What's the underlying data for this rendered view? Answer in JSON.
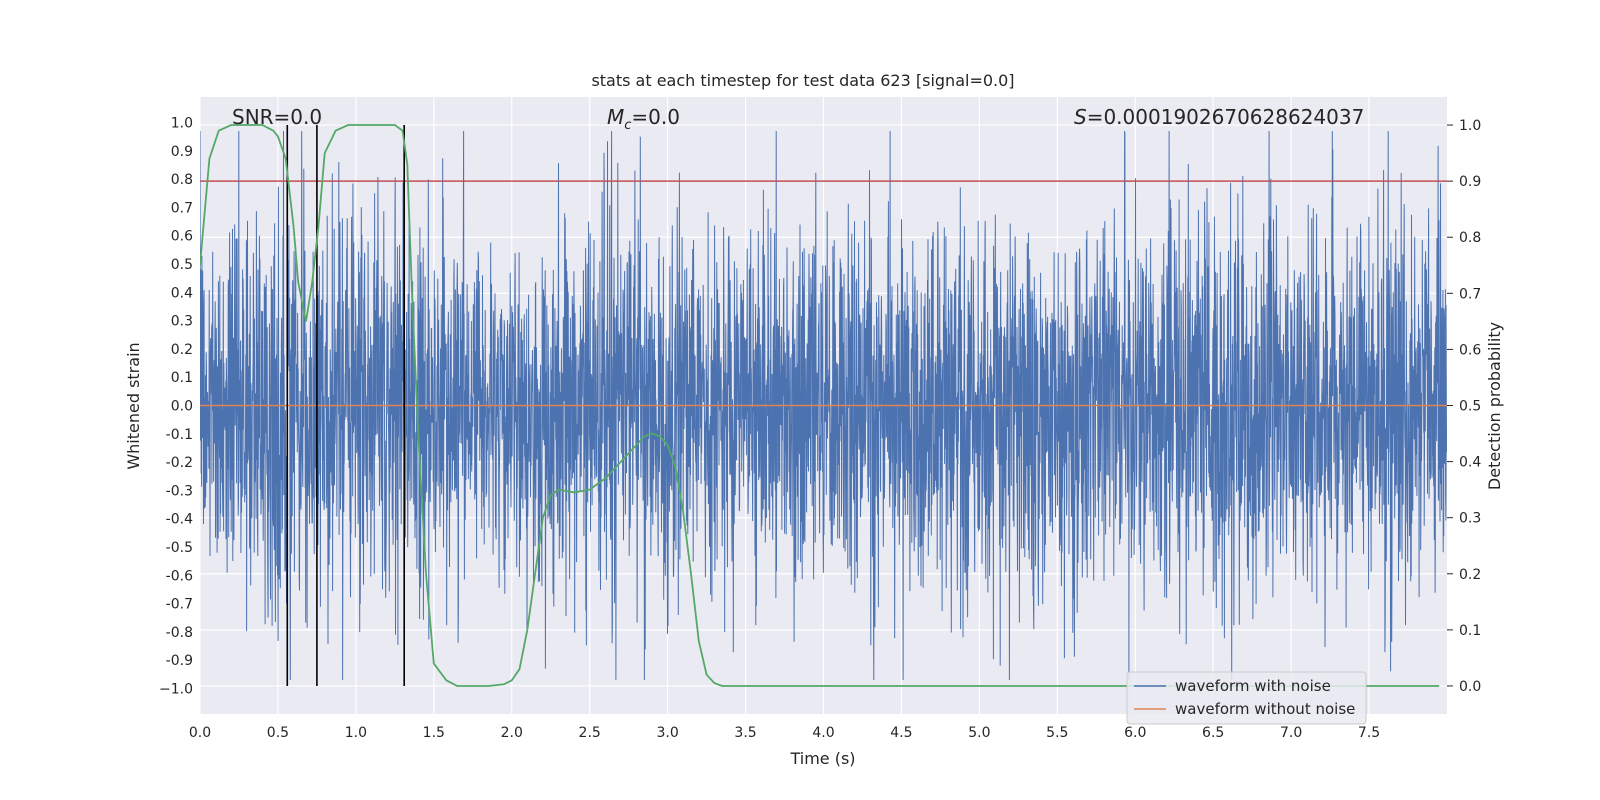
{
  "chart_data": {
    "type": "line",
    "title": "stats at each timestep for test data 623 [signal=0.0]",
    "xlabel": "Time (s)",
    "ylabel": "Whitened strain",
    "y2label": "Detection probability",
    "xlim": [
      0.0,
      8.0
    ],
    "ylim": [
      -1.09,
      1.09
    ],
    "y2lim": [
      -0.05,
      1.05
    ],
    "xticks": [
      "0.0",
      "0.5",
      "1.0",
      "1.5",
      "2.0",
      "2.5",
      "3.0",
      "3.5",
      "4.0",
      "4.5",
      "5.0",
      "5.5",
      "6.0",
      "6.5",
      "7.0",
      "7.5"
    ],
    "xtick_values": [
      0.0,
      0.5,
      1.0,
      1.5,
      2.0,
      2.5,
      3.0,
      3.5,
      4.0,
      4.5,
      5.0,
      5.5,
      6.0,
      6.5,
      7.0,
      7.5
    ],
    "yticks": [
      "1.0",
      "0.9",
      "0.8",
      "0.7",
      "0.6",
      "0.5",
      "0.4",
      "0.3",
      "0.2",
      "0.1",
      "0.0",
      "-0.1",
      "-0.2",
      "-0.3",
      "-0.4",
      "-0.5",
      "-0.6",
      "-0.7",
      "-0.8",
      "-0.9",
      "−1.0"
    ],
    "ytick_values": [
      1.0,
      0.9,
      0.8,
      0.7,
      0.6,
      0.5,
      0.4,
      0.3,
      0.2,
      0.1,
      0.0,
      -0.1,
      -0.2,
      -0.3,
      -0.4,
      -0.5,
      -0.6,
      -0.7,
      -0.8,
      -0.9,
      -1.0
    ],
    "y2ticks": [
      "1.0",
      "0.9",
      "0.8",
      "0.7",
      "0.6",
      "0.5",
      "0.4",
      "0.3",
      "0.2",
      "0.1",
      "0.0"
    ],
    "y2tick_values": [
      1.0,
      0.9,
      0.8,
      0.7,
      0.6,
      0.5,
      0.4,
      0.3,
      0.2,
      0.1,
      0.0
    ],
    "annotations": {
      "snr": "SNR=0.0",
      "mc_symbol": "M",
      "mc_sub": "c",
      "mc_value": "=0.0",
      "s_symbol": "S",
      "s_value": "=0.0001902670628624037"
    },
    "legend": {
      "position": "lower-right",
      "entries": [
        "waveform with noise",
        "waveform without noise"
      ]
    },
    "colors": {
      "noise": "#4c72b0",
      "clean": "#dd8452",
      "prob": "#55a868",
      "threshold": "#c44e52",
      "event": "#000000",
      "background": "#eaeaf2"
    },
    "series": [
      {
        "name": "waveform with noise",
        "axis": "left",
        "style": "dense-noise",
        "amplitude_envelope": [
          [
            0.0,
            0.75
          ],
          [
            0.5,
            0.8
          ],
          [
            1.0,
            0.78
          ],
          [
            1.5,
            0.72
          ],
          [
            2.0,
            0.62
          ],
          [
            2.5,
            0.75
          ],
          [
            3.0,
            0.72
          ],
          [
            3.5,
            0.65
          ],
          [
            4.0,
            0.72
          ],
          [
            4.5,
            0.76
          ],
          [
            5.0,
            0.72
          ],
          [
            5.5,
            0.74
          ],
          [
            6.0,
            0.72
          ],
          [
            6.5,
            0.76
          ],
          [
            7.0,
            0.74
          ],
          [
            7.5,
            0.7
          ],
          [
            8.0,
            0.72
          ]
        ],
        "seed": 623
      },
      {
        "name": "waveform without noise",
        "axis": "left",
        "x": [
          0.0,
          8.0
        ],
        "y": [
          0.0,
          0.0
        ]
      },
      {
        "name": "detection probability",
        "axis": "right",
        "x": [
          0.0,
          0.06,
          0.12,
          0.2,
          0.3,
          0.4,
          0.47,
          0.5,
          0.55,
          0.6,
          0.63,
          0.68,
          0.72,
          0.76,
          0.8,
          0.87,
          0.95,
          1.05,
          1.15,
          1.25,
          1.3,
          1.33,
          1.36,
          1.4,
          1.45,
          1.5,
          1.58,
          1.65,
          1.75,
          1.85,
          1.95,
          2.0,
          2.05,
          2.1,
          2.15,
          2.2,
          2.25,
          2.3,
          2.4,
          2.5,
          2.6,
          2.7,
          2.8,
          2.85,
          2.9,
          2.95,
          3.0,
          3.05,
          3.1,
          3.15,
          3.2,
          3.25,
          3.3,
          3.35,
          3.45,
          4.0,
          5.0,
          6.0,
          7.0,
          7.95
        ],
        "y": [
          0.75,
          0.94,
          0.99,
          1.0,
          1.0,
          1.0,
          0.99,
          0.98,
          0.94,
          0.82,
          0.72,
          0.65,
          0.72,
          0.82,
          0.95,
          0.99,
          1.0,
          1.0,
          1.0,
          1.0,
          0.99,
          0.93,
          0.7,
          0.45,
          0.2,
          0.04,
          0.01,
          0.0,
          0.0,
          0.0,
          0.003,
          0.01,
          0.03,
          0.1,
          0.2,
          0.3,
          0.34,
          0.35,
          0.345,
          0.35,
          0.37,
          0.4,
          0.43,
          0.445,
          0.45,
          0.445,
          0.43,
          0.39,
          0.31,
          0.2,
          0.08,
          0.02,
          0.005,
          0.0,
          0.0,
          0.0,
          0.0,
          0.0,
          0.0,
          0.0
        ]
      },
      {
        "name": "threshold",
        "axis": "right",
        "y": 0.9
      },
      {
        "name": "event markers",
        "axis": "right",
        "x": [
          0.56,
          0.75,
          1.31
        ],
        "y_range": [
          0.0,
          1.0
        ]
      }
    ]
  }
}
